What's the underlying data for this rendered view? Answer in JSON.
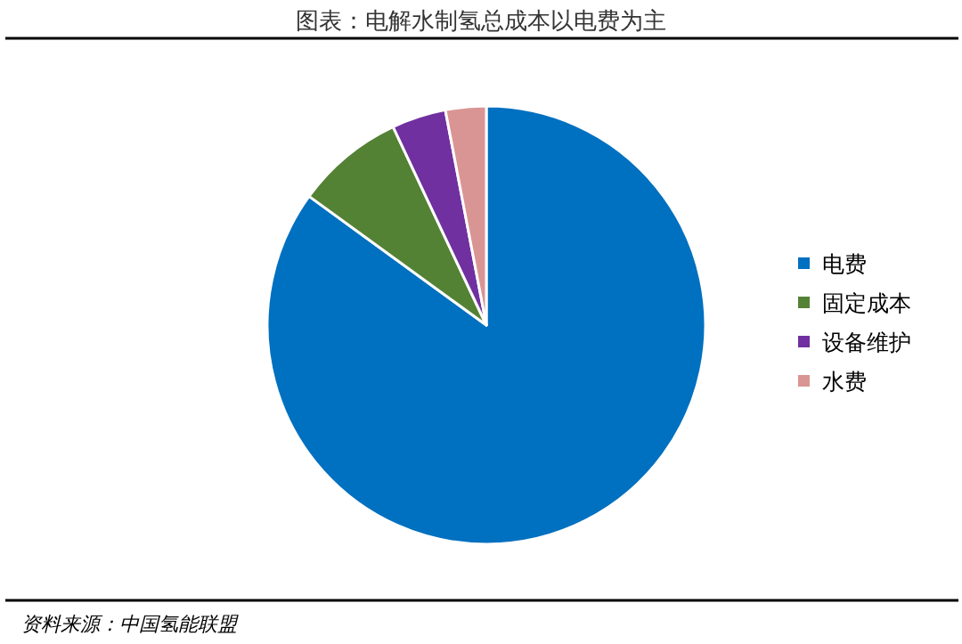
{
  "chart_data": {
    "type": "pie",
    "title": "图表：电解水制氢总成本以电费为主",
    "categories": [
      "电费",
      "固定成本",
      "设备维护",
      "水费"
    ],
    "values": [
      85,
      8,
      4,
      3
    ],
    "colors": [
      "#0070c0",
      "#548235",
      "#7030a0",
      "#d99594"
    ],
    "legend": "right",
    "annotations": [
      "资料来源：中国氢能联盟"
    ]
  }
}
